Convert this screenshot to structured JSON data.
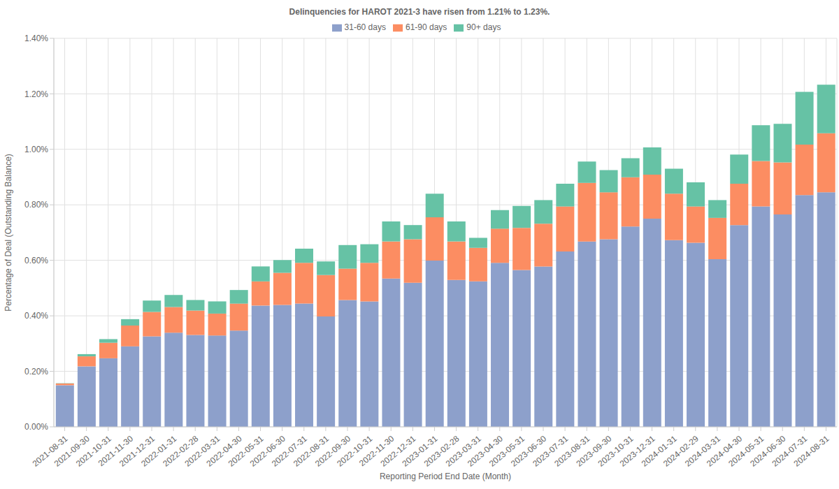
{
  "chart_data": {
    "type": "bar",
    "title": "Delinquencies for HAROT 2021-3 have risen from 1.21% to 1.23%.",
    "xlabel": "Reporting Period End Date (Month)",
    "ylabel": "Percentage of Deal (Outstanding Balance)",
    "categories": [
      "2021-08-31",
      "2021-09-30",
      "2021-10-31",
      "2021-11-30",
      "2021-12-31",
      "2022-01-31",
      "2022-02-28",
      "2022-03-31",
      "2022-04-30",
      "2022-05-31",
      "2022-06-30",
      "2022-07-31",
      "2022-08-31",
      "2022-09-30",
      "2022-10-31",
      "2022-11-30",
      "2022-12-31",
      "2023-01-31",
      "2023-02-28",
      "2023-03-31",
      "2023-04-30",
      "2023-05-31",
      "2023-06-30",
      "2023-07-31",
      "2023-08-31",
      "2023-09-30",
      "2023-10-31",
      "2023-12-31",
      "2024-01-31",
      "2024-02-29",
      "2024-03-31",
      "2024-04-30",
      "2024-05-31",
      "2024-06-30",
      "2024-07-31",
      "2024-08-31"
    ],
    "series": [
      {
        "name": "31-60 days",
        "color": "#8da0cb",
        "values": [
          0.15,
          0.218,
          0.247,
          0.29,
          0.326,
          0.339,
          0.331,
          0.329,
          0.347,
          0.437,
          0.439,
          0.444,
          0.398,
          0.457,
          0.452,
          0.534,
          0.519,
          0.599,
          0.529,
          0.524,
          0.591,
          0.565,
          0.578,
          0.632,
          0.668,
          0.676,
          0.722,
          0.75,
          0.673,
          0.663,
          0.604,
          0.727,
          0.794,
          0.765,
          0.835,
          0.845
        ]
      },
      {
        "name": "61-90 days",
        "color": "#fc8d62",
        "values": [
          0.006,
          0.036,
          0.056,
          0.075,
          0.088,
          0.093,
          0.088,
          0.079,
          0.097,
          0.087,
          0.116,
          0.147,
          0.149,
          0.113,
          0.139,
          0.134,
          0.157,
          0.156,
          0.139,
          0.121,
          0.123,
          0.152,
          0.154,
          0.162,
          0.211,
          0.169,
          0.177,
          0.159,
          0.167,
          0.131,
          0.149,
          0.149,
          0.164,
          0.188,
          0.182,
          0.213
        ]
      },
      {
        "name": "90+ days",
        "color": "#66c2a5",
        "values": [
          0.001,
          0.008,
          0.013,
          0.023,
          0.041,
          0.043,
          0.038,
          0.044,
          0.049,
          0.054,
          0.046,
          0.051,
          0.049,
          0.085,
          0.067,
          0.072,
          0.051,
          0.085,
          0.072,
          0.036,
          0.067,
          0.079,
          0.085,
          0.082,
          0.077,
          0.08,
          0.069,
          0.098,
          0.09,
          0.087,
          0.064,
          0.105,
          0.129,
          0.139,
          0.19,
          0.175
        ]
      }
    ],
    "ylim": [
      0,
      1.4
    ],
    "yticks": [
      {
        "value": 0,
        "label": "0.00%"
      },
      {
        "value": 0.2,
        "label": "0.20%"
      },
      {
        "value": 0.4,
        "label": "0.40%"
      },
      {
        "value": 0.6,
        "label": "0.60%"
      },
      {
        "value": 0.8,
        "label": "0.80%"
      },
      {
        "value": 1.0,
        "label": "1.00%"
      },
      {
        "value": 1.2,
        "label": "1.20%"
      },
      {
        "value": 1.4,
        "label": "1.40%"
      }
    ],
    "stacked": true,
    "grid": true,
    "legend": "top"
  }
}
